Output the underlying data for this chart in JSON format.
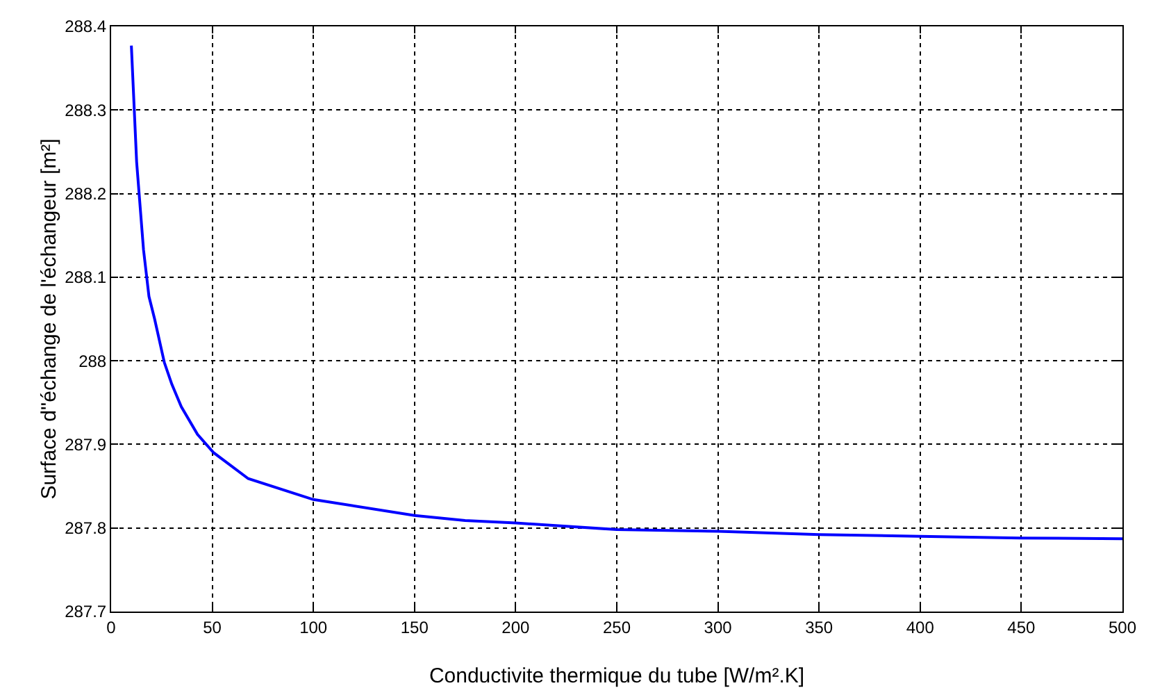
{
  "chart_data": {
    "type": "line",
    "xlabel": "Conductivite thermique du tube [W/m².K]",
    "ylabel": "Surface d''échange de l'échangeur [m²]",
    "x": [
      10,
      12.6,
      16,
      18.7,
      21.5,
      26.3,
      30,
      34.7,
      42.7,
      50.7,
      67.8,
      100,
      150,
      175,
      200,
      250,
      300,
      350,
      400,
      450,
      500
    ],
    "series": [
      {
        "color": "#0000ff",
        "values": [
          288.377,
          288.238,
          288.133,
          288.077,
          288.05,
          287.998,
          287.972,
          287.945,
          287.912,
          287.89,
          287.859,
          287.834,
          287.815,
          287.809,
          287.806,
          287.798,
          287.796,
          287.792,
          287.79,
          287.788,
          287.787
        ]
      }
    ],
    "xlim": [
      0,
      500
    ],
    "xticks": [
      0,
      50,
      100,
      150,
      200,
      250,
      300,
      350,
      400,
      450,
      500
    ],
    "ylim": [
      287.7,
      288.4
    ],
    "yticks": [
      287.7,
      287.8,
      287.9,
      288,
      288.1,
      288.2,
      288.3,
      288.4
    ],
    "grid": true,
    "marker": "none",
    "line_style": "solid"
  }
}
